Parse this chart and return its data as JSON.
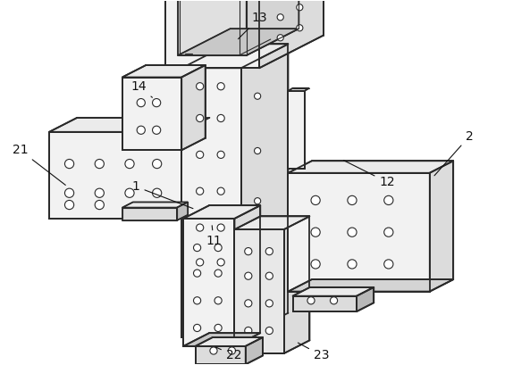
{
  "bg_color": "#ffffff",
  "lc": "#2a2a2a",
  "lw": 1.3,
  "lwt": 0.8,
  "fc_front": "#f2f2f2",
  "fc_side": "#dcdcdc",
  "fc_top": "#ebebeb",
  "fc_inner": "#e4e4e4",
  "fc_inner2": "#d0d0d0",
  "figsize": [
    5.74,
    4.09
  ],
  "dpi": 100
}
